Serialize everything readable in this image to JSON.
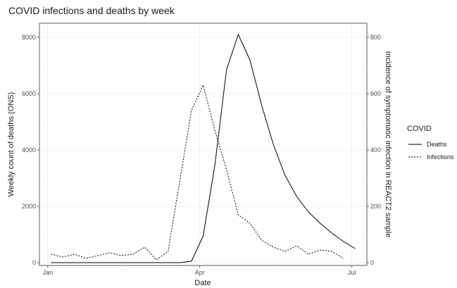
{
  "chart_data": {
    "type": "line",
    "title": "COVID infections and deaths by week",
    "xlabel": "Date",
    "ylabel": "Weekly count of deaths (ONS)",
    "ylabel_right": "Incidence of symptomatic infection in REACT2 sample",
    "x_ticks": [
      "Jan",
      "Apr",
      "Jul"
    ],
    "y_ticks_left": [
      0,
      2000,
      4000,
      6000,
      8000
    ],
    "y_ticks_right": [
      0,
      200,
      400,
      600,
      800
    ],
    "ylim": [
      -100,
      8500
    ],
    "ylim_right": [
      -10,
      850
    ],
    "legend": {
      "title": "COVID",
      "position": "right"
    },
    "grid": true,
    "series": [
      {
        "name": "Deaths",
        "axis": "left",
        "linestyle": "solid",
        "x": [
          "2020-01-03",
          "2020-01-10",
          "2020-01-17",
          "2020-01-24",
          "2020-01-31",
          "2020-02-07",
          "2020-02-14",
          "2020-02-21",
          "2020-02-28",
          "2020-03-06",
          "2020-03-13",
          "2020-03-20",
          "2020-03-27",
          "2020-04-03",
          "2020-04-10",
          "2020-04-17",
          "2020-04-24",
          "2020-05-01",
          "2020-05-08",
          "2020-05-15",
          "2020-05-22",
          "2020-05-29",
          "2020-06-05",
          "2020-06-12",
          "2020-06-19",
          "2020-06-26",
          "2020-07-03"
        ],
        "values": [
          0,
          0,
          0,
          0,
          0,
          0,
          0,
          0,
          0,
          0,
          0,
          0,
          50,
          950,
          3450,
          6850,
          8100,
          7200,
          5600,
          4200,
          3100,
          2350,
          1800,
          1400,
          1050,
          750,
          500
        ]
      },
      {
        "name": "Infections",
        "axis": "right",
        "linestyle": "dashed",
        "x": [
          "2020-01-03",
          "2020-01-10",
          "2020-01-17",
          "2020-01-24",
          "2020-01-31",
          "2020-02-07",
          "2020-02-14",
          "2020-02-21",
          "2020-02-28",
          "2020-03-06",
          "2020-03-13",
          "2020-03-20",
          "2020-03-27",
          "2020-04-03",
          "2020-04-10",
          "2020-04-17",
          "2020-04-24",
          "2020-05-01",
          "2020-05-08",
          "2020-05-15",
          "2020-05-22",
          "2020-05-29",
          "2020-06-05",
          "2020-06-12",
          "2020-06-19",
          "2020-06-26",
          "2020-07-03"
        ],
        "values": [
          30,
          20,
          30,
          15,
          25,
          35,
          25,
          30,
          55,
          10,
          40,
          290,
          540,
          630,
          470,
          330,
          170,
          140,
          80,
          55,
          40,
          60,
          30,
          45,
          40,
          15,
          null
        ]
      }
    ]
  }
}
